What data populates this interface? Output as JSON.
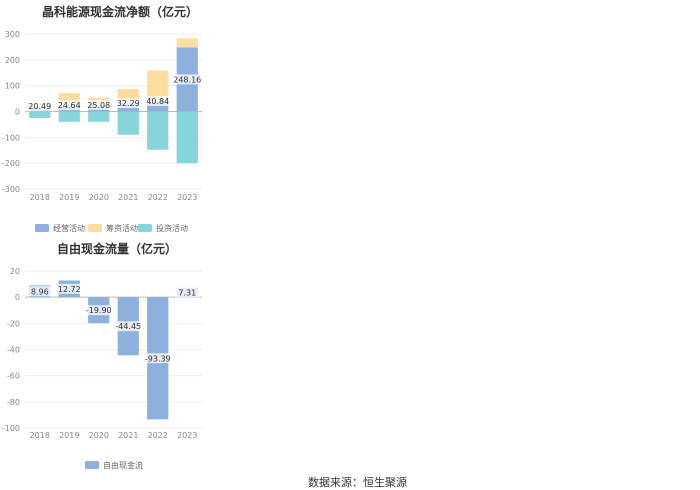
{
  "chart_data": [
    {
      "type": "bar",
      "title": "晶科能源现金流净额（亿元）",
      "categories": [
        "2018",
        "2019",
        "2020",
        "2021",
        "2022",
        "2023"
      ],
      "series": [
        {
          "name": "经营活动",
          "values": [
            20.49,
            24.64,
            25.08,
            32.29,
            40.84,
            248.16
          ],
          "color": "#8eb0dc"
        },
        {
          "name": "筹资活动",
          "values": [
            10,
            47,
            28,
            55,
            118,
            35
          ],
          "color": "#fedd9e"
        },
        {
          "name": "投资活动",
          "values": [
            -25,
            -40,
            -40,
            -90,
            -148,
            -200
          ],
          "color": "#86d5da"
        }
      ],
      "data_labels": [
        "20.49",
        "24.64",
        "25.08",
        "32.29",
        "40.84",
        "248.16"
      ],
      "stacked": true,
      "ylim": [
        -300,
        300
      ],
      "yticks": [
        300,
        200,
        100,
        0,
        -100,
        -200,
        -300
      ],
      "grid": true,
      "legend_position": "bottom"
    },
    {
      "type": "bar",
      "title": "自由现金流量（亿元）",
      "categories": [
        "2018",
        "2019",
        "2020",
        "2021",
        "2022",
        "2023"
      ],
      "series": [
        {
          "name": "自由现金流",
          "values": [
            8.96,
            12.72,
            -19.9,
            -44.45,
            -93.39,
            7.31
          ],
          "color": "#8eb0dc"
        }
      ],
      "data_labels": [
        "8.96",
        "12.72",
        "-19.90",
        "-44.45",
        "-93.39",
        "7.31"
      ],
      "ylim": [
        -100,
        20
      ],
      "yticks": [
        20,
        0,
        -20,
        -40,
        -60,
        -80,
        -100
      ],
      "grid": true,
      "legend_position": "bottom"
    }
  ],
  "footer": {
    "source": "数据来源：恒生聚源"
  }
}
